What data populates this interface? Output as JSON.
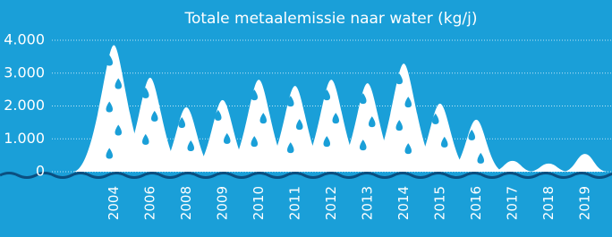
{
  "chart_data": {
    "type": "mountain",
    "title": "Totale metaalemissie naar water (kg/j)",
    "categories": [
      "2004",
      "2006",
      "2008",
      "2009",
      "2010",
      "2011",
      "2012",
      "2013",
      "2014",
      "2015",
      "2016",
      "2017",
      "2018",
      "2019"
    ],
    "values": [
      3850,
      2860,
      1960,
      2180,
      2800,
      2610,
      2800,
      2690,
      3290,
      2070,
      1580,
      330,
      250,
      540
    ],
    "color": "#ffffff",
    "ylim": [
      0,
      4000
    ],
    "yticks": [
      0,
      {
        "value": 1000,
        "label": "1.000"
      },
      {
        "value": 2000,
        "label": "2.000"
      },
      {
        "value": 3000,
        "label": "3.000"
      },
      {
        "value": 4000,
        "label": "4.000"
      }
    ],
    "grid": true
  }
}
